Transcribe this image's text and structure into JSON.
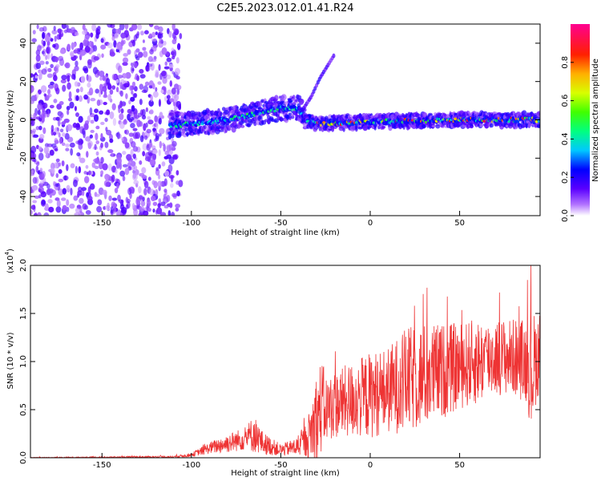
{
  "title": "C2E5.2023.012.01.41.R24",
  "chart_data": [
    {
      "type": "heatmap",
      "xlabel": "Height of straight line (km)",
      "ylabel": "Frequency (Hz)",
      "xlim": [
        -190,
        95
      ],
      "ylim": [
        -50,
        50
      ],
      "x_ticks": [
        -150,
        -100,
        -50,
        0,
        50
      ],
      "y_ticks": [
        -40,
        -20,
        0,
        20,
        40
      ],
      "colorbar": {
        "label": "Normalized spectral amplitude",
        "range": [
          0,
          1
        ],
        "ticks": [
          0.0,
          0.2,
          0.4,
          0.6,
          0.8
        ],
        "colormap": "rainbow (violet-blue-cyan-green-yellow-orange-red-magenta)"
      },
      "features": [
        {
          "name": "noise",
          "x_range": [
            -190,
            -112
          ],
          "freq_range": [
            -50,
            50
          ],
          "amplitude": 0.1
        },
        {
          "name": "signal_band",
          "points": [
            [
              -112,
              -3
            ],
            [
              -100,
              -2
            ],
            [
              -80,
              0
            ],
            [
              -65,
              3
            ],
            [
              -50,
              6
            ],
            [
              -40,
              6
            ],
            [
              -36,
              0
            ],
            [
              -30,
              -2
            ],
            [
              0,
              -1
            ],
            [
              50,
              0
            ],
            [
              95,
              0
            ]
          ],
          "amplitude_range": [
            0.2,
            0.9
          ]
        },
        {
          "name": "branch",
          "points": [
            [
              -38,
              5
            ],
            [
              -33,
              12
            ],
            [
              -28,
              22
            ],
            [
              -20,
              34
            ]
          ]
        }
      ]
    },
    {
      "type": "line",
      "xlabel": "Height of straight line (km)",
      "ylabel": "SNR (10 * v/v)",
      "y_multiplier": "(x10",
      "y_multiplier_exp": "4",
      "y_multiplier_close": ")",
      "xlim": [
        -190,
        95
      ],
      "ylim": [
        0,
        2.0
      ],
      "x_ticks": [
        -150,
        -100,
        -50,
        0,
        50
      ],
      "y_ticks": [
        0.0,
        0.5,
        1.0,
        1.5,
        2.0
      ],
      "series": [
        {
          "color": "#ee3333",
          "envelope_x": [
            -190,
            -110,
            -100,
            -90,
            -80,
            -70,
            -65,
            -60,
            -50,
            -40,
            -35,
            -30,
            -27,
            -25,
            -20,
            -10,
            0,
            10,
            20,
            30,
            40,
            50,
            60,
            70,
            80,
            88,
            90,
            92,
            95
          ],
          "envelope_mid": [
            0.0,
            0.01,
            0.03,
            0.1,
            0.15,
            0.2,
            0.25,
            0.15,
            0.08,
            0.12,
            0.2,
            0.4,
            0.55,
            0.5,
            0.55,
            0.6,
            0.65,
            0.7,
            0.8,
            0.85,
            0.9,
            0.95,
            1.0,
            1.05,
            1.05,
            1.0,
            0.9,
            1.0,
            1.1
          ],
          "envelope_amp": [
            0.005,
            0.01,
            0.02,
            0.06,
            0.1,
            0.12,
            0.2,
            0.12,
            0.06,
            0.1,
            0.2,
            0.5,
            0.5,
            0.35,
            0.35,
            0.4,
            0.45,
            0.45,
            0.55,
            0.55,
            0.5,
            0.45,
            0.45,
            0.4,
            0.4,
            0.45,
            0.7,
            0.5,
            0.4
          ]
        }
      ]
    }
  ]
}
